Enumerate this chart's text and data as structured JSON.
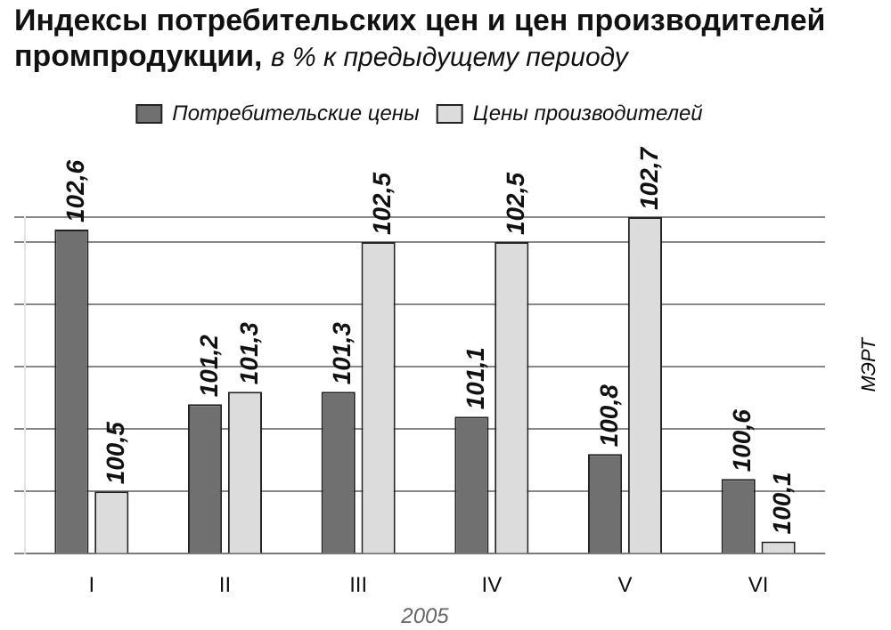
{
  "chart_data": {
    "type": "bar",
    "title": "Индексы потребительских цен и цен производителей промпродукции,",
    "subtitle": "в % к предыдущему периоду",
    "xlabel": "2005",
    "annotations": [
      "МЭРТ"
    ],
    "categories": [
      "I",
      "II",
      "III",
      "IV",
      "V",
      "VI"
    ],
    "series": [
      {
        "name": "Потребительские цены",
        "color": "#707070",
        "values": [
          102.6,
          101.2,
          101.3,
          101.1,
          100.8,
          100.6
        ],
        "value_labels": [
          "102,6",
          "101,2",
          "101,3",
          "101,1",
          "100,8",
          "100,6"
        ]
      },
      {
        "name": "Цены производителей",
        "color": "#dcdcdc",
        "values": [
          100.5,
          101.3,
          102.5,
          102.5,
          102.7,
          100.1
        ],
        "value_labels": [
          "100,5",
          "101,3",
          "102,5",
          "102,5",
          "102,7",
          "100,1"
        ]
      }
    ],
    "ylim": [
      100,
      102.7
    ],
    "grid": "y",
    "legend": "top",
    "tick_labels": "x"
  }
}
